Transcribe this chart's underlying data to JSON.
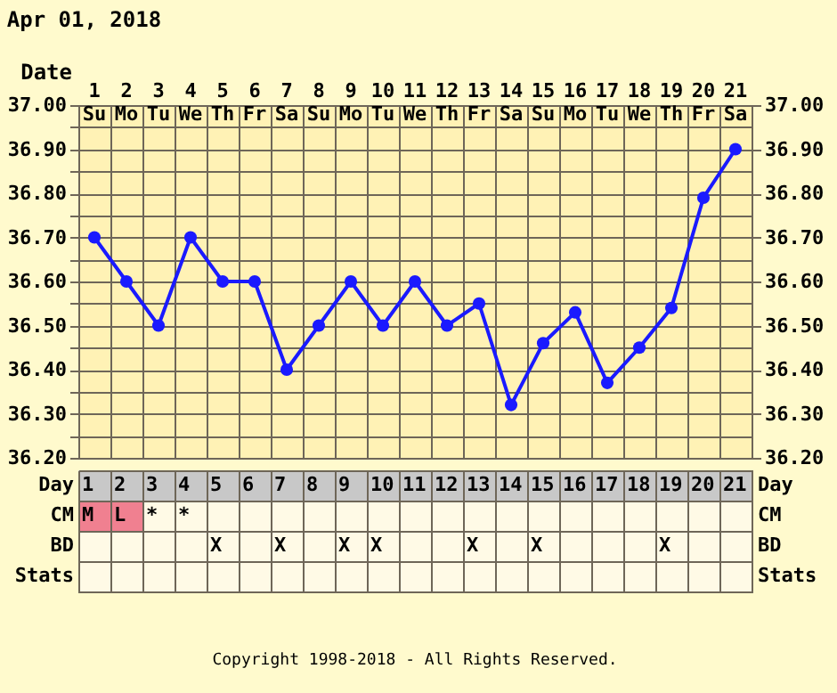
{
  "chart_data": [
    {
      "type": "line",
      "title": "Apr 01, 2018",
      "xlabel": "Date",
      "categories": [
        "1\nSu",
        "2\nMo",
        "3\nTu",
        "4\nWe",
        "5\nTh",
        "6\nFr",
        "7\nSa",
        "8\nSu",
        "9\nMo",
        "10\nTu",
        "11\nWe",
        "12\nTh",
        "13\nFr",
        "14\nSa",
        "15\nSu",
        "16\nMo",
        "17\nTu",
        "18\nWe",
        "19\nTh",
        "20\nFr",
        "21\nSa"
      ],
      "series": [
        {
          "color": "#1a1aff",
          "values": [
            36.7,
            36.6,
            36.5,
            36.7,
            36.6,
            36.6,
            36.4,
            36.5,
            36.6,
            36.5,
            36.6,
            36.5,
            36.55,
            36.32,
            36.46,
            36.53,
            36.37,
            36.45,
            36.54,
            36.79,
            36.9
          ]
        }
      ],
      "ylim": [
        36.2,
        37.0
      ],
      "yticks": [
        {
          "value": 36.2,
          "label": "36.20"
        },
        {
          "value": 36.25,
          "label": null
        },
        {
          "value": 36.3,
          "label": "36.30"
        },
        {
          "value": 36.35,
          "label": null
        },
        {
          "value": 36.4,
          "label": "36.40"
        },
        {
          "value": 36.45,
          "label": null
        },
        {
          "value": 36.5,
          "label": "36.50"
        },
        {
          "value": 36.55,
          "label": null
        },
        {
          "value": 36.6,
          "label": "36.60"
        },
        {
          "value": 36.65,
          "label": null
        },
        {
          "value": 36.7,
          "label": "36.70"
        },
        {
          "value": 36.75,
          "label": null
        },
        {
          "value": 36.8,
          "label": "36.80"
        },
        {
          "value": 36.85,
          "label": null
        },
        {
          "value": 36.9,
          "label": "36.90"
        },
        {
          "value": 36.95,
          "label": null
        },
        {
          "value": 37.0,
          "label": "37.00"
        }
      ],
      "y2lim": [
        36.2,
        37.0
      ],
      "y2ticks": [
        {
          "value": 36.2,
          "label": "36.20"
        },
        {
          "value": 36.3,
          "label": "36.30"
        },
        {
          "value": 36.4,
          "label": "36.40"
        },
        {
          "value": 36.5,
          "label": "36.50"
        },
        {
          "value": 36.6,
          "label": "36.60"
        },
        {
          "value": 36.7,
          "label": "36.70"
        },
        {
          "value": 36.8,
          "label": "36.80"
        },
        {
          "value": 36.9,
          "label": "36.90"
        },
        {
          "value": 37.0,
          "label": "37.00"
        }
      ],
      "grid": true,
      "marker": "circle"
    },
    {
      "type": "heatmap",
      "categories": [
        null,
        null,
        null,
        null,
        null,
        null,
        null,
        null,
        null,
        null,
        null,
        null,
        null,
        null,
        null,
        null,
        null,
        null,
        null,
        null,
        null
      ],
      "y_categories": [
        "Day",
        "CM",
        "BD",
        "Stats"
      ],
      "y2_categories": [
        "Day",
        "CM",
        "BD",
        "Stats"
      ],
      "cells": [
        [
          null,
          null,
          null,
          null,
          null,
          null,
          null,
          null,
          null,
          null,
          null,
          null,
          null,
          null,
          null,
          null,
          null,
          null,
          null,
          null,
          null
        ],
        [
          null,
          null,
          null,
          null,
          null,
          null,
          null,
          null,
          null,
          null,
          null,
          null,
          null,
          null,
          null,
          null,
          null,
          null,
          null,
          null,
          null
        ],
        [
          null,
          null,
          null,
          null,
          null,
          null,
          null,
          null,
          null,
          null,
          null,
          null,
          null,
          null,
          null,
          null,
          null,
          null,
          null,
          null,
          null
        ],
        [
          null,
          null,
          null,
          null,
          null,
          null,
          null,
          null,
          null,
          null,
          null,
          null,
          null,
          null,
          null,
          null,
          null,
          null,
          null,
          null,
          null
        ]
      ],
      "cell_labels": [
        [
          "1",
          "2",
          "3",
          "4",
          "5",
          "6",
          "7",
          "8",
          "9",
          "10",
          "11",
          "12",
          "13",
          "14",
          "15",
          "16",
          "17",
          "18",
          "19",
          "20",
          "21"
        ],
        [
          "M",
          "L",
          "*",
          "*",
          null,
          null,
          null,
          null,
          null,
          null,
          null,
          null,
          null,
          null,
          null,
          null,
          null,
          null,
          null,
          null,
          null
        ],
        [
          null,
          null,
          null,
          null,
          "X",
          null,
          "X",
          null,
          "X",
          "X",
          null,
          null,
          "X",
          null,
          "X",
          null,
          null,
          null,
          "X",
          null,
          null
        ],
        [
          null,
          null,
          null,
          null,
          null,
          null,
          null,
          null,
          null,
          null,
          null,
          null,
          null,
          null,
          null,
          null,
          null,
          null,
          null,
          null,
          null
        ]
      ],
      "colors": [
        [
          "#c8c8c8",
          "#c8c8c8",
          "#c8c8c8",
          "#c8c8c8",
          "#c8c8c8",
          "#c8c8c8",
          "#c8c8c8",
          "#c8c8c8",
          "#c8c8c8",
          "#c8c8c8",
          "#c8c8c8",
          "#c8c8c8",
          "#c8c8c8",
          "#c8c8c8",
          "#c8c8c8",
          "#c8c8c8",
          "#c8c8c8",
          "#c8c8c8",
          "#c8c8c8",
          "#c8c8c8",
          "#c8c8c8"
        ],
        [
          "#f08090",
          "#f08090",
          null,
          null,
          null,
          null,
          null,
          null,
          null,
          null,
          null,
          null,
          null,
          null,
          null,
          null,
          null,
          null,
          null,
          null,
          null
        ],
        [
          null,
          null,
          null,
          null,
          null,
          null,
          null,
          null,
          null,
          null,
          null,
          null,
          null,
          null,
          null,
          null,
          null,
          null,
          null,
          null,
          null
        ],
        [
          null,
          null,
          null,
          null,
          null,
          null,
          null,
          null,
          null,
          null,
          null,
          null,
          null,
          null,
          null,
          null,
          null,
          null,
          null,
          null,
          null
        ]
      ],
      "annotations": [
        "Copyright 1998-2018 - All Rights Reserved."
      ]
    }
  ]
}
